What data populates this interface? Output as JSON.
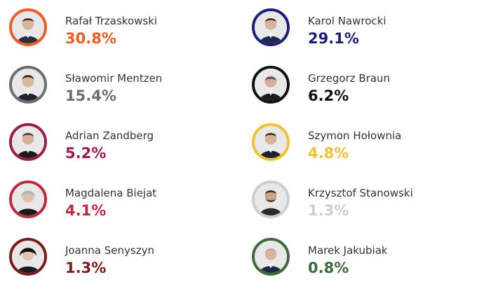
{
  "candidates": [
    {
      "name": "Rafał Trzaskowski",
      "percent": "30.8%",
      "color": "#f15a24"
    },
    {
      "name": "Karol Nawrocki",
      "percent": "29.1%",
      "color": "#1b1f7a"
    },
    {
      "name": "Sławomir Mentzen",
      "percent": "15.4%",
      "color": "#6d6d6d"
    },
    {
      "name": "Grzegorz Braun",
      "percent": "6.2%",
      "color": "#111111"
    },
    {
      "name": "Adrian Zandberg",
      "percent": "5.2%",
      "color": "#9b1b4b"
    },
    {
      "name": "Szymon Hołownia",
      "percent": "4.8%",
      "color": "#f2c230"
    },
    {
      "name": "Magdalena Biejat",
      "percent": "4.1%",
      "color": "#c0283b"
    },
    {
      "name": "Krzysztof Stanowski",
      "percent": "1.3%",
      "color": "#c7cfd4"
    },
    {
      "name": "Joanna Senyszyn",
      "percent": "1.3%",
      "color": "#7a1a1a"
    },
    {
      "name": "Marek Jakubiak",
      "percent": "0.8%",
      "color": "#3f6b3a"
    }
  ],
  "avatar_icon": "person-photo"
}
